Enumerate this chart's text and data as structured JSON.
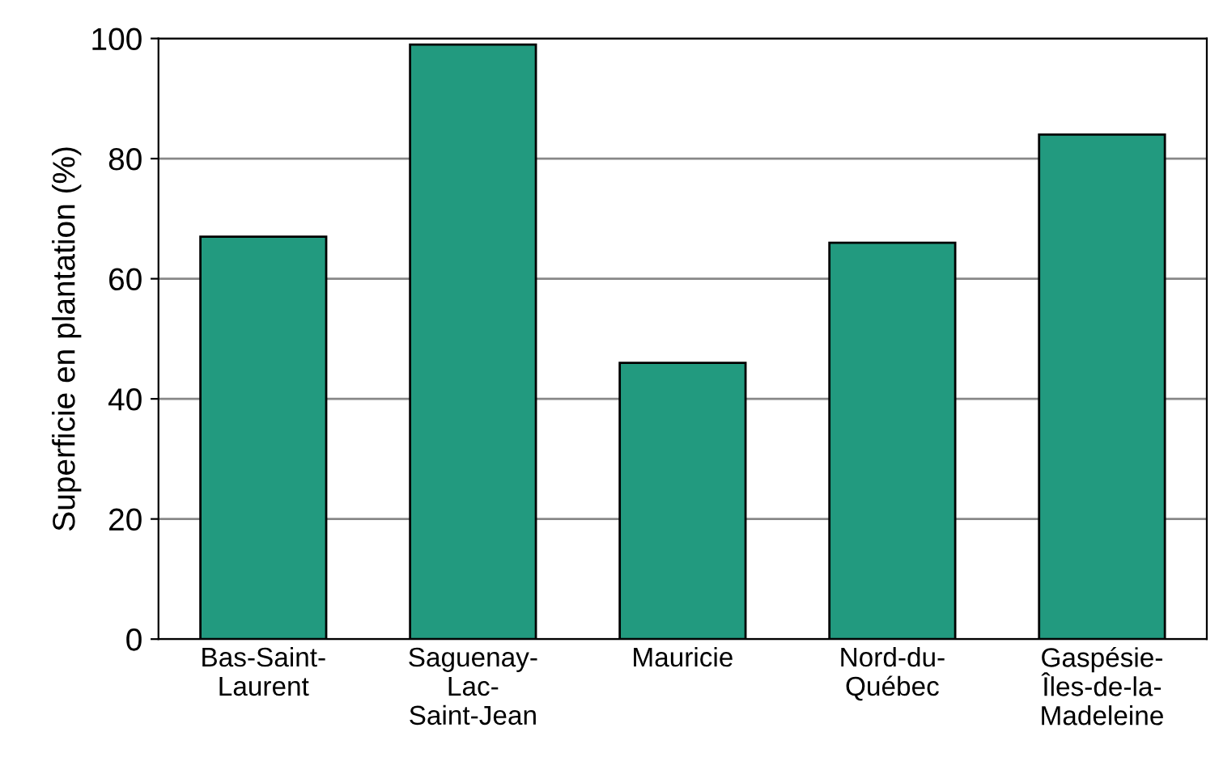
{
  "chart_data": {
    "type": "bar",
    "ylabel": "Superficie en plantation (%)",
    "categories": [
      "Bas-Saint-\nLaurent",
      "Saguenay-\nLac-\nSaint-Jean",
      "Mauricie",
      "Nord-du-\nQuébec",
      "Gaspésie-\nÎles-de-la-\nMadeleine"
    ],
    "values": [
      67,
      99,
      46,
      66,
      84
    ],
    "color": "#229a7f",
    "ylim": [
      0,
      100
    ],
    "yticks": [
      0,
      20,
      40,
      60,
      80,
      100
    ],
    "grid": "y"
  }
}
